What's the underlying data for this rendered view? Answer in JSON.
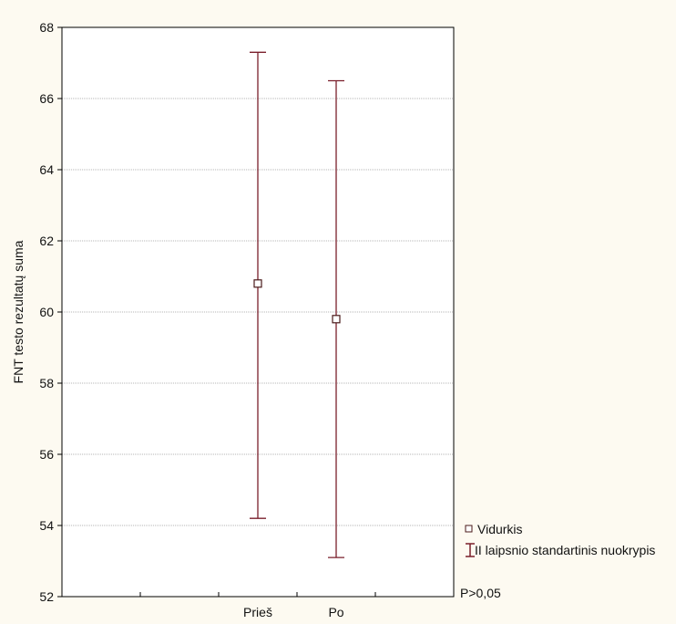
{
  "chart_data": {
    "type": "scatter",
    "title": "",
    "xlabel": "",
    "ylabel": "FNT testo rezultatų suma",
    "categories": [
      "Prieš",
      "Po"
    ],
    "ylim": [
      52,
      68
    ],
    "yticks": [
      52,
      54,
      56,
      58,
      60,
      62,
      64,
      66,
      68
    ],
    "grid": "horizontal",
    "series": [
      {
        "name": "Vidurkis",
        "values": [
          60.8,
          59.8
        ],
        "error_low": [
          54.2,
          53.1
        ],
        "error_high": [
          67.3,
          66.5
        ]
      }
    ],
    "legend": {
      "position": "right",
      "mean_label": "Vidurkis",
      "error_label": "II laipsnio standartinis nuokrypis"
    },
    "annotation": "P>0,05",
    "colors": {
      "error_bar": "#7a1f2b",
      "marker_fill": "#ffffff",
      "marker_stroke": "#4a1a1a",
      "grid": "#b5b5b5",
      "plot_background": "#ffffff",
      "page_background": "#fdfaf1"
    }
  }
}
